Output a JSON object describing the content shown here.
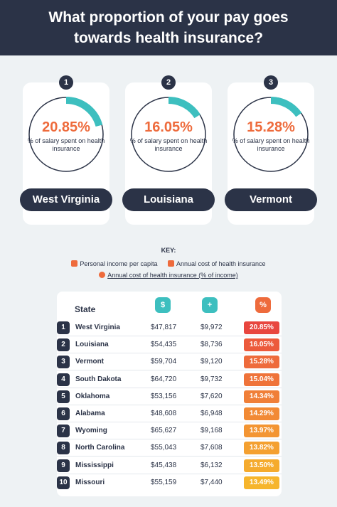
{
  "header": {
    "title_line1": "What proportion of your pay goes",
    "title_line2": "towards health insurance?"
  },
  "sub_label": "% of salary spent on health insurance",
  "top3": [
    {
      "rank": "1",
      "pct": "20.85%",
      "state": "West Virginia",
      "share": 0.2085
    },
    {
      "rank": "2",
      "pct": "16.05%",
      "state": "Louisiana",
      "share": 0.1605
    },
    {
      "rank": "3",
      "pct": "15.28%",
      "state": "Vermont",
      "share": 0.1528
    }
  ],
  "key": {
    "title": "KEY:",
    "income": "Personal income per capita",
    "cost": "Annual cost of health insurance",
    "pct": "Annual cost of health insurance (% of income)"
  },
  "table": {
    "state_header": "State",
    "icons": [
      "coins-icon",
      "medical-kit-icon",
      "percent-icon"
    ],
    "rows": [
      {
        "rank": "1",
        "state": "West Virginia",
        "income": "$47,817",
        "cost": "$9,972",
        "pct": "20.85%"
      },
      {
        "rank": "2",
        "state": "Louisiana",
        "income": "$54,435",
        "cost": "$8,736",
        "pct": "16.05%"
      },
      {
        "rank": "3",
        "state": "Vermont",
        "income": "$59,704",
        "cost": "$9,120",
        "pct": "15.28%"
      },
      {
        "rank": "4",
        "state": "South Dakota",
        "income": "$64,720",
        "cost": "$9,732",
        "pct": "15.04%"
      },
      {
        "rank": "5",
        "state": "Oklahoma",
        "income": "$53,156",
        "cost": "$7,620",
        "pct": "14.34%"
      },
      {
        "rank": "6",
        "state": "Alabama",
        "income": "$48,608",
        "cost": "$6,948",
        "pct": "14.29%"
      },
      {
        "rank": "7",
        "state": "Wyoming",
        "income": "$65,627",
        "cost": "$9,168",
        "pct": "13.97%"
      },
      {
        "rank": "8",
        "state": "North Carolina",
        "income": "$55,043",
        "cost": "$7,608",
        "pct": "13.82%"
      },
      {
        "rank": "9",
        "state": "Mississippi",
        "income": "$45,438",
        "cost": "$6,132",
        "pct": "13.50%"
      },
      {
        "rank": "10",
        "state": "Missouri",
        "income": "$55,159",
        "cost": "$7,440",
        "pct": "13.49%"
      }
    ]
  },
  "colors": {
    "navy": "#2b3347",
    "teal": "#3dbfbf",
    "orange": "#ee6b3c",
    "pct_scale": [
      "#e8463f",
      "#ec5a3c",
      "#ee6b3c",
      "#ef733a",
      "#f07f38",
      "#f28a35",
      "#f39533",
      "#f4a030",
      "#f5ab2e",
      "#f6b52c"
    ]
  }
}
